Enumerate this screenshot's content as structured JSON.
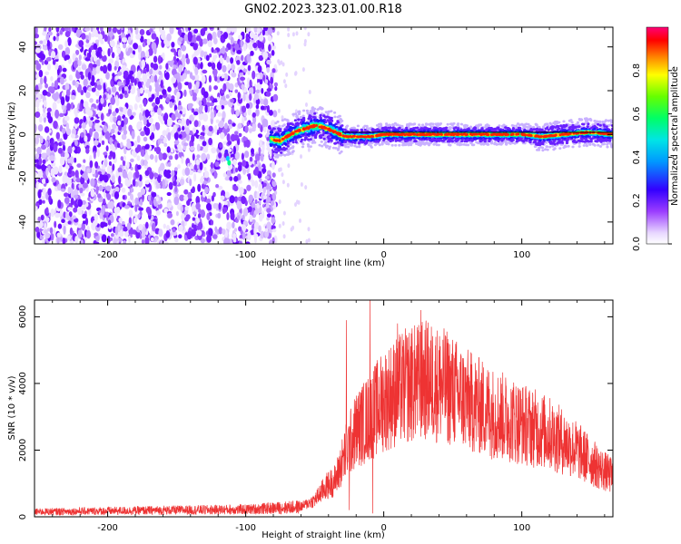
{
  "figure": {
    "title": "GN02.2023.323.01.00.R18"
  },
  "chart_data": [
    {
      "type": "heatmap",
      "name": "spectrogram",
      "xlabel": "Height of straight line (km)",
      "ylabel": "Frequency (Hz)",
      "xlim": [
        -253,
        166
      ],
      "ylim": [
        -50,
        49
      ],
      "xticks": [
        -200,
        -100,
        0,
        100
      ],
      "yticks": [
        -40,
        -20,
        0,
        20,
        40
      ],
      "grid": false,
      "colorbar": {
        "label": "Normalized spectral amplitude",
        "range": [
          0,
          1
        ],
        "ticks": [
          0.0,
          0.2,
          0.4,
          0.6,
          0.8
        ]
      },
      "noise_region_x": [
        -253,
        -78
      ],
      "signal_track": [
        {
          "x": -82,
          "y": -2
        },
        {
          "x": -75,
          "y": -3
        },
        {
          "x": -68,
          "y": 0
        },
        {
          "x": -60,
          "y": 2
        },
        {
          "x": -50,
          "y": 4
        },
        {
          "x": -42,
          "y": 3
        },
        {
          "x": -35,
          "y": 1
        },
        {
          "x": -28,
          "y": -1
        },
        {
          "x": -20,
          "y": -1
        },
        {
          "x": -10,
          "y": -1
        },
        {
          "x": 0,
          "y": 0
        },
        {
          "x": 20,
          "y": 0
        },
        {
          "x": 60,
          "y": 0
        },
        {
          "x": 100,
          "y": 0
        },
        {
          "x": 115,
          "y": -1
        },
        {
          "x": 130,
          "y": 0
        },
        {
          "x": 150,
          "y": 1
        },
        {
          "x": 166,
          "y": 0
        }
      ],
      "reference_line_y": 1
    },
    {
      "type": "line",
      "name": "snr",
      "xlabel": "Height of straight line (km)",
      "ylabel": "SNR (10 * v/v)",
      "xlim": [
        -253,
        166
      ],
      "ylim": [
        0,
        6500
      ],
      "xticks": [
        -200,
        -100,
        0,
        100
      ],
      "yticks": [
        0,
        2000,
        4000,
        6000
      ],
      "grid": false,
      "color": "#ee3333",
      "envelope": [
        {
          "x": -253,
          "y": 150
        },
        {
          "x": -150,
          "y": 200
        },
        {
          "x": -100,
          "y": 220
        },
        {
          "x": -60,
          "y": 300
        },
        {
          "x": -50,
          "y": 500
        },
        {
          "x": -42,
          "y": 900
        },
        {
          "x": -35,
          "y": 1100
        },
        {
          "x": -28,
          "y": 1900
        },
        {
          "x": -20,
          "y": 2600
        },
        {
          "x": -10,
          "y": 3000
        },
        {
          "x": 0,
          "y": 3500
        },
        {
          "x": 15,
          "y": 3900
        },
        {
          "x": 30,
          "y": 4100
        },
        {
          "x": 45,
          "y": 3900
        },
        {
          "x": 60,
          "y": 3500
        },
        {
          "x": 80,
          "y": 3100
        },
        {
          "x": 100,
          "y": 2800
        },
        {
          "x": 120,
          "y": 2500
        },
        {
          "x": 140,
          "y": 2000
        },
        {
          "x": 155,
          "y": 1500
        },
        {
          "x": 166,
          "y": 1200
        }
      ],
      "spikes": [
        {
          "x": -27,
          "y": 5900
        },
        {
          "x": -10,
          "y": 6500
        },
        {
          "x": -8,
          "y": 100
        },
        {
          "x": 10,
          "y": 5800
        },
        {
          "x": 27,
          "y": 6200
        },
        {
          "x": 20,
          "y": 5500
        },
        {
          "x": 40,
          "y": 5000
        },
        {
          "x": -25,
          "y": 200
        }
      ]
    }
  ]
}
